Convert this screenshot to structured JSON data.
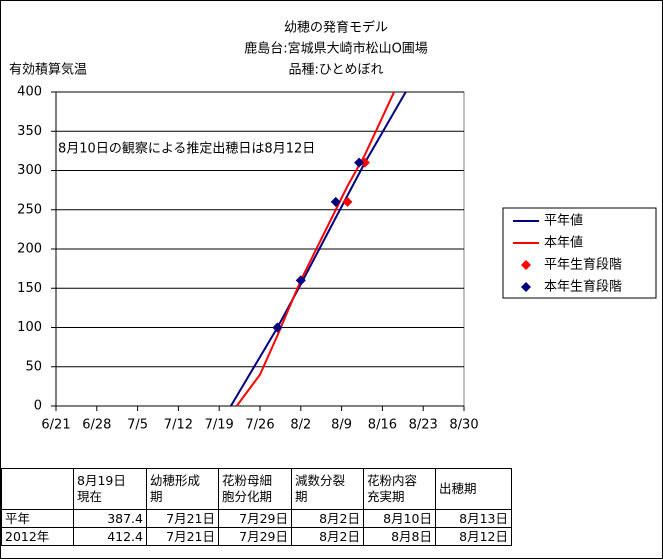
{
  "chart_data": {
    "type": "line",
    "title": [
      "幼穂の発育モデル",
      "鹿島台:宮城県大崎市松山O圃場",
      "品種:ひとめぼれ"
    ],
    "y_label": "有効積算気温",
    "annotation": "8月10日の観察による推定出穂日は8月12日",
    "xlim": [
      "6/21",
      "8/30"
    ],
    "xticks": [
      "6/21",
      "6/28",
      "7/5",
      "7/12",
      "7/19",
      "7/26",
      "8/2",
      "8/9",
      "8/16",
      "8/23",
      "8/30"
    ],
    "ylim": [
      0,
      400
    ],
    "yticks": [
      0,
      50,
      100,
      150,
      200,
      250,
      300,
      350,
      400
    ],
    "grid": true,
    "series": [
      {
        "name": "平年値",
        "color": "#000080",
        "mark": "line",
        "x": [
          "7/21",
          "7/29",
          "8/2",
          "8/8",
          "8/13",
          "8/20"
        ],
        "values": [
          0,
          100,
          155,
          240,
          310,
          400
        ]
      },
      {
        "name": "本年値",
        "color": "#ff0000",
        "mark": "line",
        "x": [
          "7/22",
          "7/26",
          "7/29",
          "8/2",
          "8/8",
          "8/10",
          "8/13",
          "8/18"
        ],
        "values": [
          0,
          40,
          90,
          160,
          250,
          280,
          320,
          400
        ]
      },
      {
        "name": "平年生育段階",
        "color": "#ff0000",
        "mark": "diamond",
        "x": [
          "7/29",
          "8/2",
          "8/10",
          "8/13"
        ],
        "values": [
          100,
          160,
          260,
          310
        ]
      },
      {
        "name": "本年生育段階",
        "color": "#000080",
        "mark": "diamond",
        "x": [
          "7/29",
          "8/2",
          "8/8",
          "8/12"
        ],
        "values": [
          100,
          160,
          260,
          310
        ]
      }
    ]
  },
  "table": {
    "header": [
      [
        "8月19日",
        "現在"
      ],
      [
        "幼穂形成",
        "期"
      ],
      [
        "花粉母細",
        "胞分化期"
      ],
      [
        "減数分裂",
        "期"
      ],
      [
        "花粉内容",
        "充実期"
      ],
      [
        "出穂期"
      ]
    ],
    "rows": [
      [
        "平年",
        "387.4",
        "7月21日",
        "7月29日",
        "8月2日",
        "8月10日",
        "8月13日"
      ],
      [
        "2012年",
        "412.4",
        "7月21日",
        "7月29日",
        "8月2日",
        "8月8日",
        "8月12日"
      ]
    ]
  }
}
